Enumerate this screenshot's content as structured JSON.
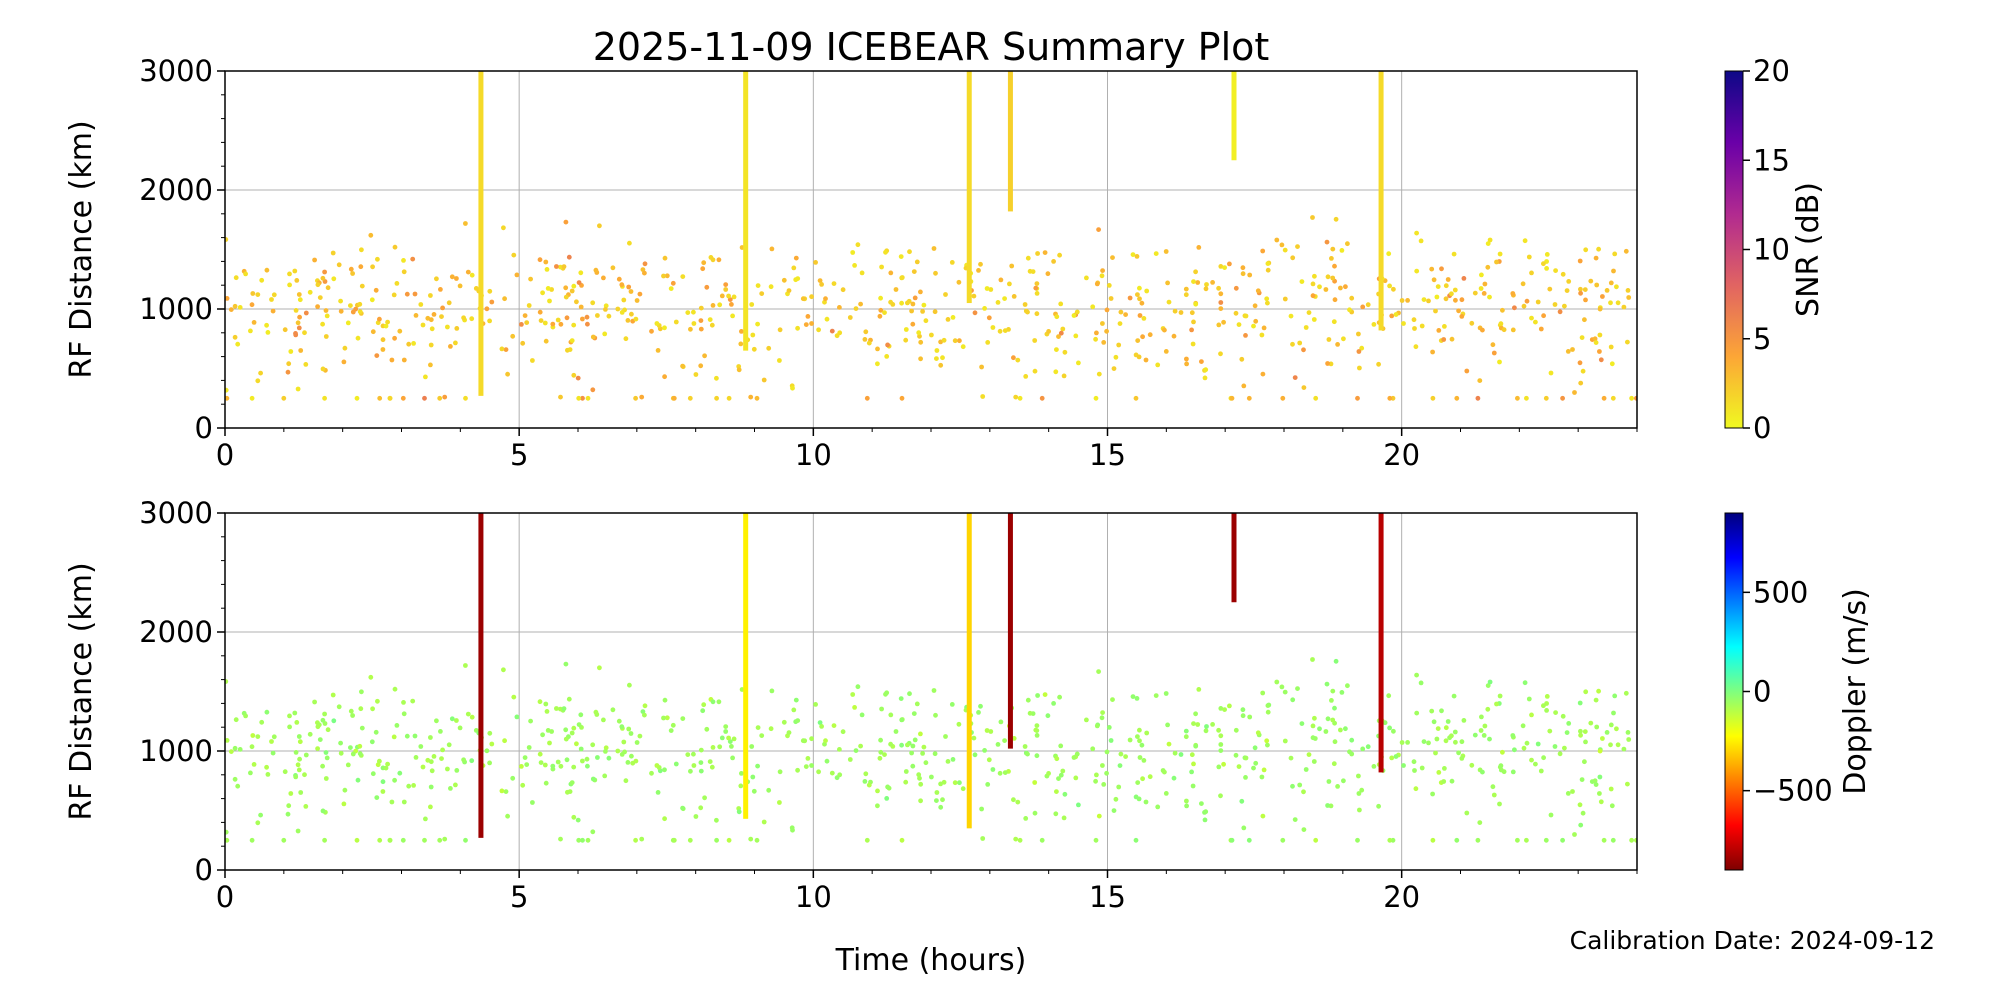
{
  "figure": {
    "title": "2025-11-09 ICEBEAR Summary Plot",
    "xlabel": "Time (hours)",
    "calibration": "Calibration Date: 2024-09-12"
  },
  "chart_data": [
    {
      "type": "scatter",
      "name": "snr-panel",
      "ylabel": "RF Distance (km)",
      "xlim": [
        0,
        24
      ],
      "ylim": [
        0,
        3000
      ],
      "x_ticks": [
        0,
        5,
        10,
        15,
        20
      ],
      "y_ticks": [
        0,
        1000,
        2000,
        3000
      ],
      "grid": true,
      "color_variable": "snr",
      "colorbar": {
        "label": "SNR (dB)",
        "colormap": "plasma_r",
        "range": [
          0,
          20
        ],
        "ticks": [
          0,
          5,
          10,
          15,
          20
        ],
        "stops": [
          "#f0f921",
          "#fca636",
          "#e16462",
          "#b12a90",
          "#6a00a8",
          "#0d0887"
        ]
      },
      "vertical_streaks": [
        {
          "x": 4.35,
          "y_min": 270,
          "y_max": 3000,
          "snr": 1.5
        },
        {
          "x": 8.85,
          "y_min": 650,
          "y_max": 3000,
          "snr": 1.0
        },
        {
          "x": 12.65,
          "y_min": 1050,
          "y_max": 3000,
          "snr": 1.5
        },
        {
          "x": 13.35,
          "y_min": 1820,
          "y_max": 3000,
          "snr": 2.0
        },
        {
          "x": 17.15,
          "y_min": 2250,
          "y_max": 3000,
          "snr": 0.5
        },
        {
          "x": 19.65,
          "y_min": 820,
          "y_max": 3000,
          "snr": 1.5
        }
      ]
    },
    {
      "type": "scatter",
      "name": "doppler-panel",
      "ylabel": "RF Distance (km)",
      "xlim": [
        0,
        24
      ],
      "ylim": [
        0,
        3000
      ],
      "x_ticks": [
        0,
        5,
        10,
        15,
        20
      ],
      "y_ticks": [
        0,
        1000,
        2000,
        3000
      ],
      "grid": true,
      "color_variable": "doppler",
      "colorbar": {
        "label": "Doppler (m/s)",
        "colormap": "jet_r",
        "range": [
          -900,
          900
        ],
        "ticks": [
          -500,
          0,
          500
        ],
        "tick_labels": [
          "−500",
          "0",
          "500"
        ],
        "stops": [
          "#7f0000",
          "#ff0000",
          "#ff7f00",
          "#ffff00",
          "#7fff7f",
          "#00ffff",
          "#007fff",
          "#0000ff",
          "#00007f"
        ]
      },
      "vertical_streaks": [
        {
          "x": 4.35,
          "y_min": 270,
          "y_max": 3000,
          "doppler": -850
        },
        {
          "x": 8.85,
          "y_min": 430,
          "y_max": 3000,
          "doppler": -250
        },
        {
          "x": 12.65,
          "y_min": 350,
          "y_max": 3000,
          "doppler": -300
        },
        {
          "x": 13.35,
          "y_min": 1020,
          "y_max": 3000,
          "doppler": -850
        },
        {
          "x": 17.15,
          "y_min": 2250,
          "y_max": 3000,
          "doppler": -850
        },
        {
          "x": 19.65,
          "y_min": 820,
          "y_max": 3000,
          "doppler": -800
        }
      ]
    }
  ]
}
